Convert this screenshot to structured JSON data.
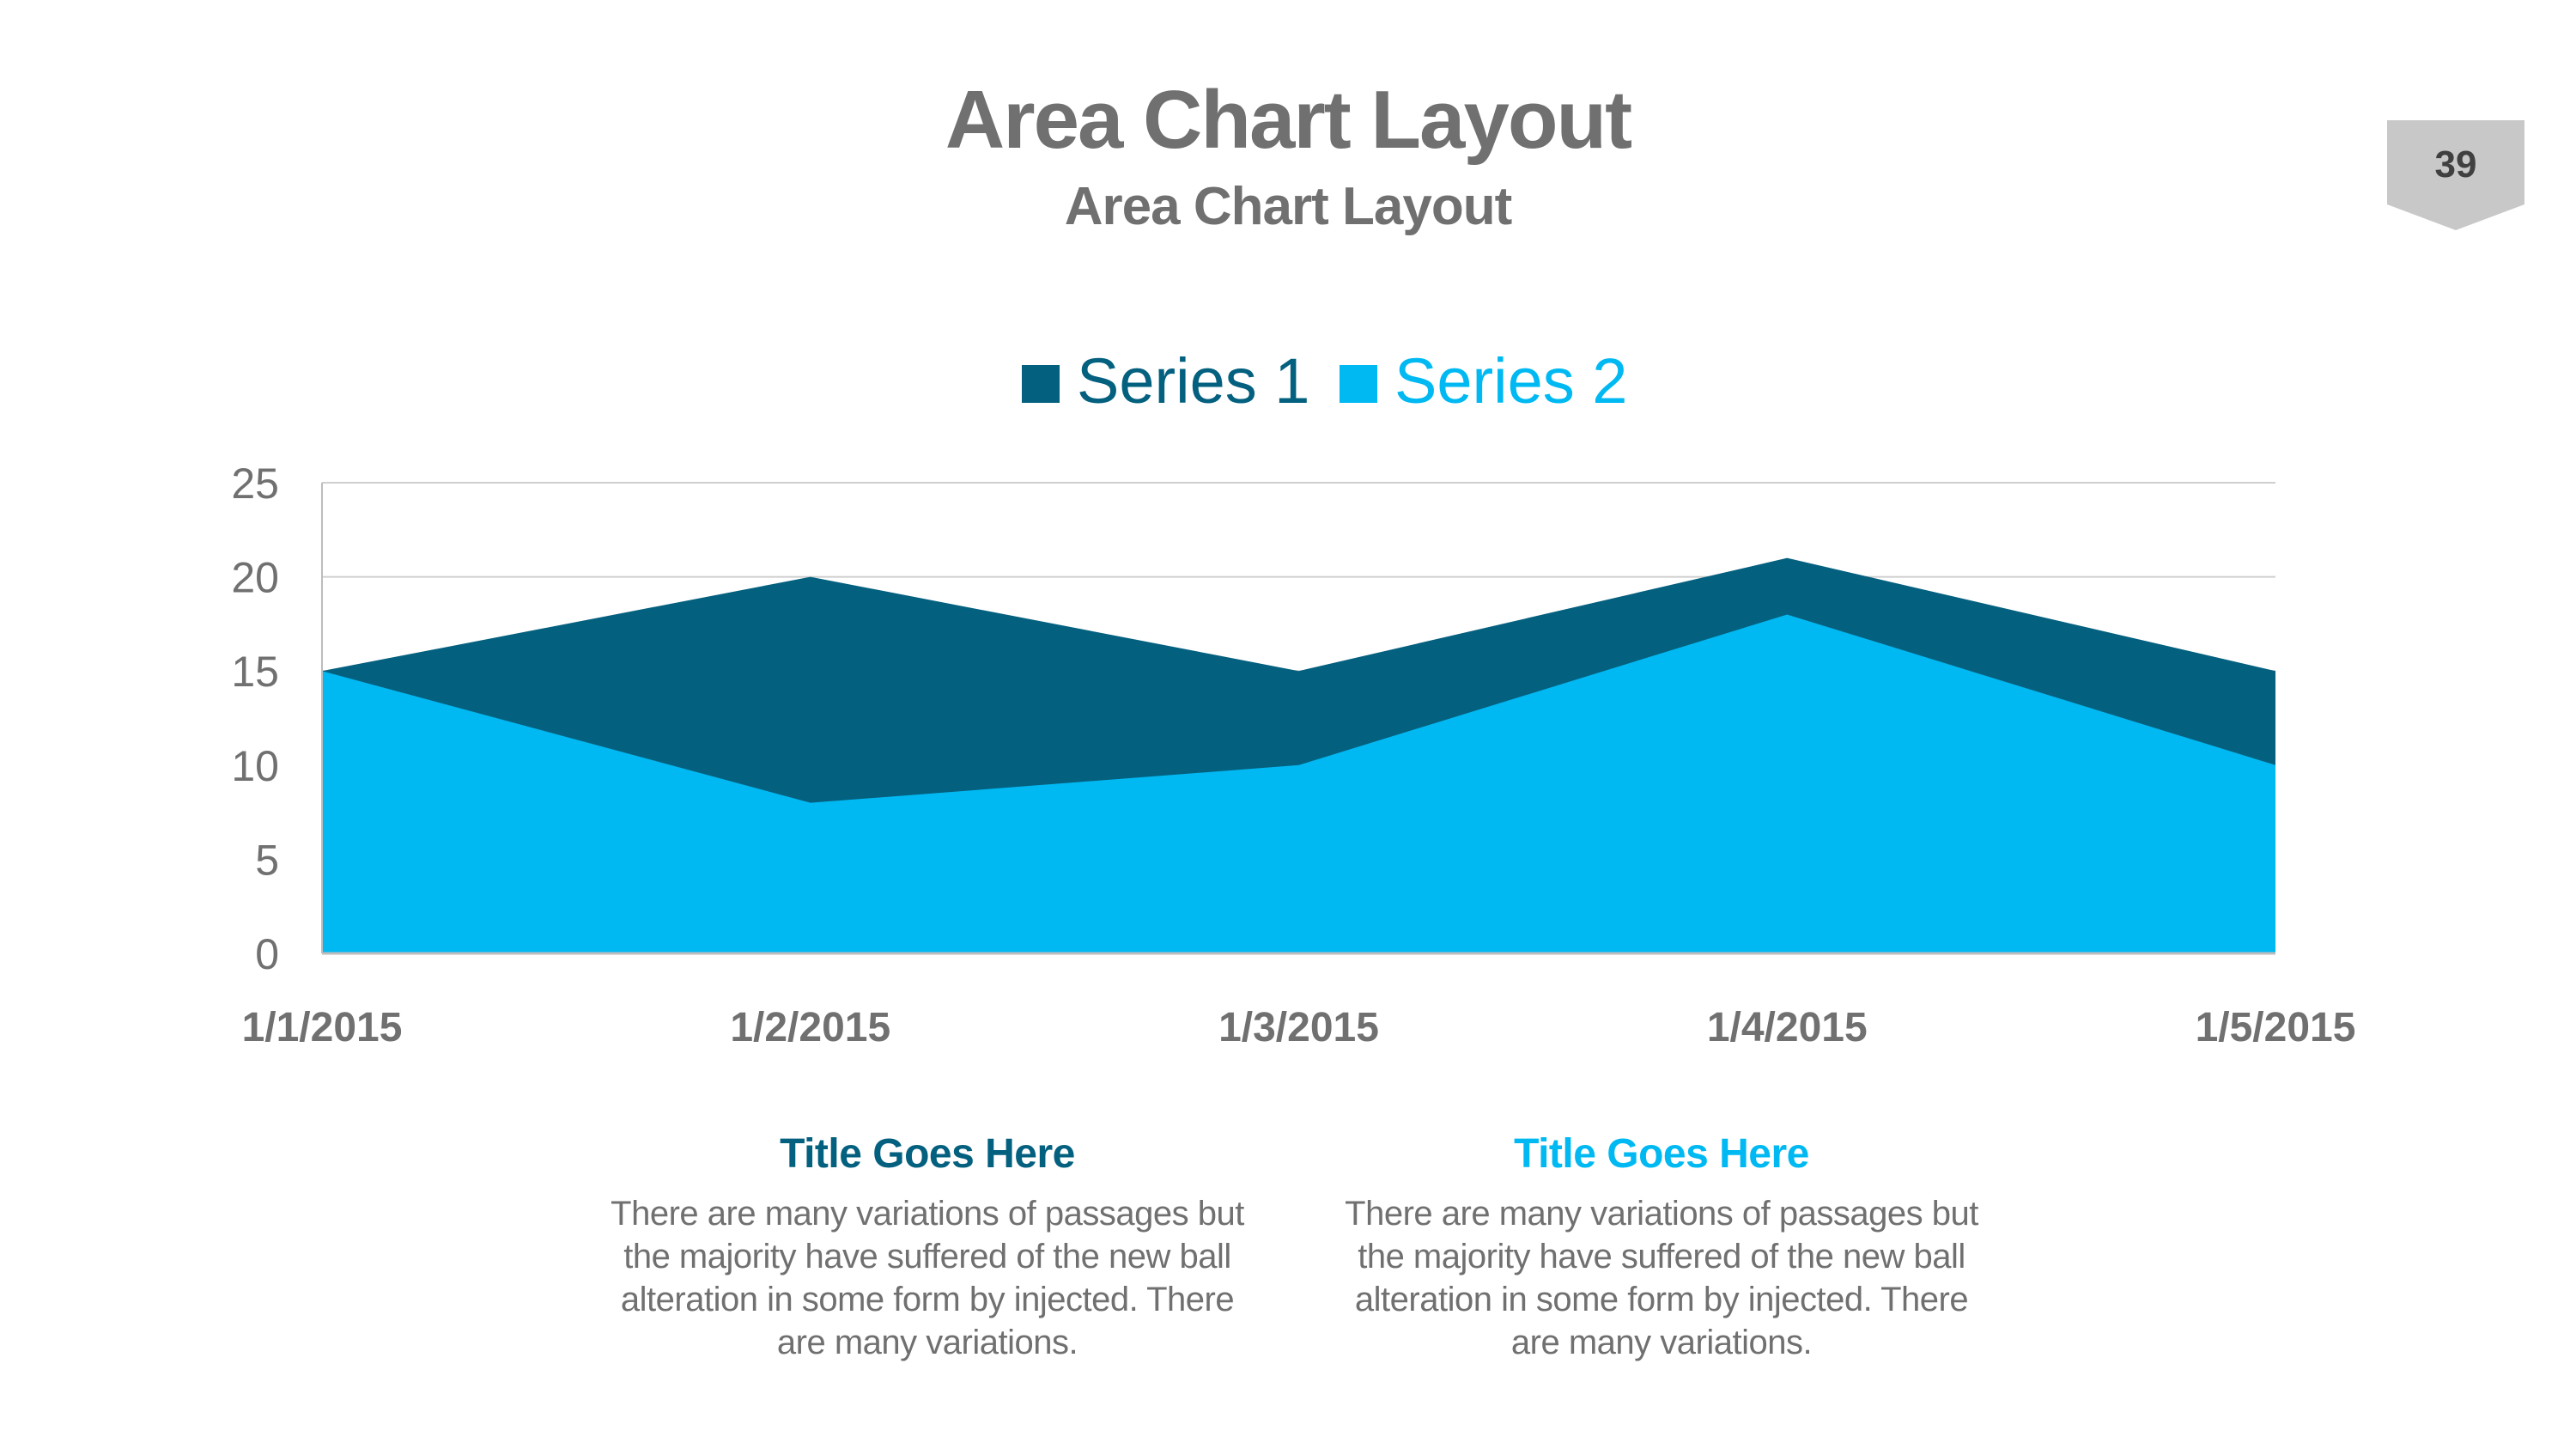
{
  "slide": {
    "title": "Area Chart Layout",
    "subtitle": "Area Chart Layout",
    "page_number": "39"
  },
  "colors": {
    "series1": "#04607f",
    "series2": "#00b9f2",
    "text_gray": "#707070",
    "badge_gray": "#c8c8c8"
  },
  "chart_data": {
    "type": "area",
    "title": "",
    "xlabel": "",
    "ylabel": "",
    "categories": [
      "1/1/2015",
      "1/2/2015",
      "1/3/2015",
      "1/4/2015",
      "1/5/2015"
    ],
    "series": [
      {
        "name": "Series 1",
        "values": [
          15,
          20,
          15,
          21,
          15
        ],
        "color": "#04607f"
      },
      {
        "name": "Series 2",
        "values": [
          15,
          8,
          10,
          18,
          10
        ],
        "color": "#00b9f2"
      }
    ],
    "ylim": [
      0,
      25
    ],
    "yticks": [
      "0",
      "5",
      "10",
      "15",
      "20",
      "25"
    ],
    "grid": true,
    "legend_position": "top"
  },
  "columns": [
    {
      "title": "Title Goes Here",
      "body": "There are many variations of passages but the majority have  suffered of the new ball alteration in some form by injected. There are many variations."
    },
    {
      "title": "Title Goes Here",
      "body": "There are many variations of passages but the majority have  suffered of the new ball alteration in some form by injected. There are many variations."
    }
  ]
}
